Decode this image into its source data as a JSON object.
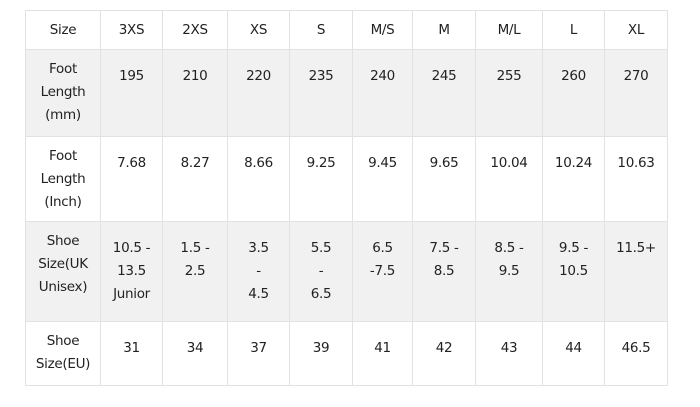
{
  "table": {
    "header": [
      "Size",
      "3XS",
      "2XS",
      "XS",
      "S",
      "M/S",
      "M",
      "M/L",
      "L",
      "XL"
    ],
    "rows": [
      [
        [
          "Foot",
          "Length",
          "(mm)"
        ],
        [
          "195"
        ],
        [
          "210"
        ],
        [
          "220"
        ],
        [
          "235"
        ],
        [
          "240"
        ],
        [
          "245"
        ],
        [
          "255"
        ],
        [
          "260"
        ],
        [
          "270"
        ]
      ],
      [
        [
          "Foot",
          "Length",
          "(Inch)"
        ],
        [
          "7.68"
        ],
        [
          "8.27"
        ],
        [
          "8.66"
        ],
        [
          "9.25"
        ],
        [
          "9.45"
        ],
        [
          "9.65"
        ],
        [
          "10.04"
        ],
        [
          "10.24"
        ],
        [
          "10.63"
        ]
      ],
      [
        [
          "Shoe",
          "Size(UK",
          "Unisex)"
        ],
        [
          "10.5 -",
          "13.5",
          "Junior"
        ],
        [
          "1.5 -",
          "2.5"
        ],
        [
          "3.5",
          "-",
          "4.5"
        ],
        [
          "5.5",
          "-",
          "6.5"
        ],
        [
          "6.5",
          "-7.5"
        ],
        [
          "7.5 -",
          "8.5"
        ],
        [
          "8.5 -",
          "9.5"
        ],
        [
          "9.5 -",
          "10.5"
        ],
        [
          "11.5+"
        ]
      ],
      [
        [
          "Shoe",
          "Size(EU)"
        ],
        [
          "31"
        ],
        [
          "34"
        ],
        [
          "37"
        ],
        [
          "39"
        ],
        [
          "41"
        ],
        [
          "42"
        ],
        [
          "43"
        ],
        [
          "44"
        ],
        [
          "46.5"
        ]
      ]
    ]
  }
}
